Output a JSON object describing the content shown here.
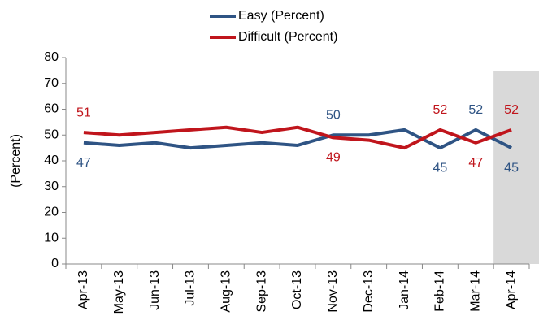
{
  "chart_data": {
    "type": "line",
    "y_label": "(Percent)",
    "categories": [
      "Apr-13",
      "May-13",
      "Jun-13",
      "Jul-13",
      "Aug-13",
      "Sep-13",
      "Oct-13",
      "Nov-13",
      "Dec-13",
      "Jan-14",
      "Feb-14",
      "Mar-14",
      "Apr-14"
    ],
    "series": [
      {
        "name": "Easy (Percent)",
        "color": "#2f5484",
        "values": [
          47,
          46,
          47,
          45,
          46,
          47,
          46,
          50,
          50,
          52,
          45,
          52,
          45
        ],
        "labeled": [
          0,
          7,
          10,
          11,
          12
        ]
      },
      {
        "name": "Difficult (Percent)",
        "color": "#c0151c",
        "values": [
          51,
          50,
          51,
          52,
          53,
          51,
          53,
          49,
          48,
          45,
          52,
          47,
          52
        ],
        "labeled": [
          0,
          7,
          10,
          11,
          12
        ]
      }
    ],
    "ylim": [
      0,
      80
    ],
    "yticks": [
      0,
      10,
      20,
      30,
      40,
      50,
      60,
      70,
      80
    ],
    "highlight_category": 12,
    "legend": "top"
  }
}
